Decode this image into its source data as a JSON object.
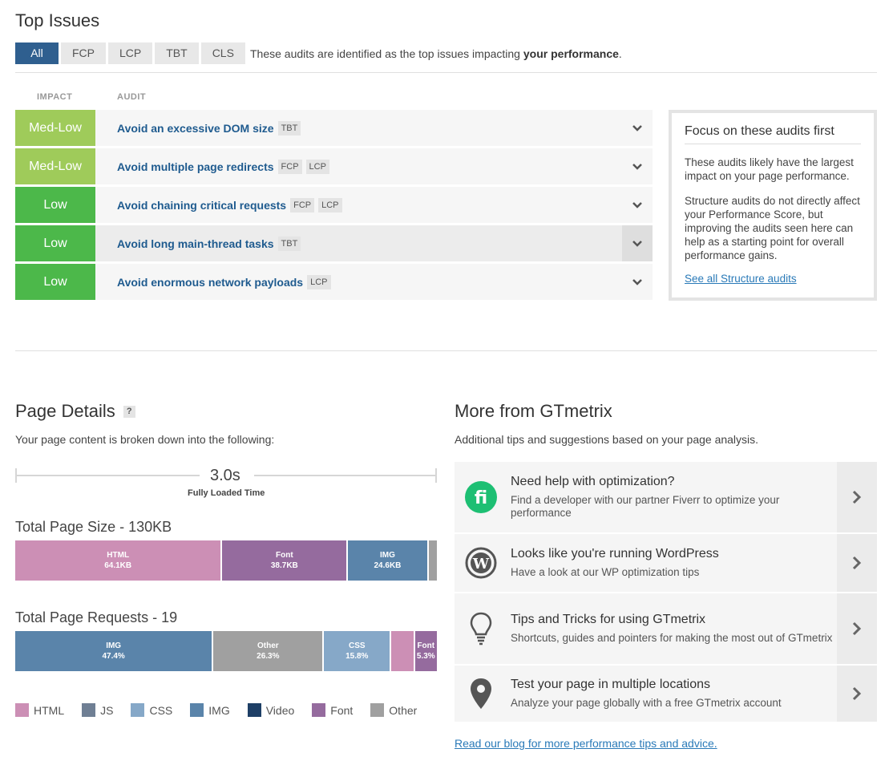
{
  "top_issues": {
    "title": "Top Issues",
    "tabs": [
      "All",
      "FCP",
      "LCP",
      "TBT",
      "CLS"
    ],
    "desc_prefix": "These audits are identified as the top issues impacting ",
    "desc_bold": "your performance",
    "desc_suffix": ".",
    "col_impact": "IMPACT",
    "col_audit": "AUDIT",
    "audits": [
      {
        "impact": "Med-Low",
        "title": "Avoid an excessive DOM size",
        "tags": [
          "TBT"
        ],
        "color": "#9fcb5a"
      },
      {
        "impact": "Med-Low",
        "title": "Avoid multiple page redirects",
        "tags": [
          "FCP",
          "LCP"
        ],
        "color": "#9fcb5a"
      },
      {
        "impact": "Low",
        "title": "Avoid chaining critical requests",
        "tags": [
          "FCP",
          "LCP"
        ],
        "color": "#4cb84a"
      },
      {
        "impact": "Low",
        "title": "Avoid long main-thread tasks",
        "tags": [
          "TBT"
        ],
        "color": "#4cb84a"
      },
      {
        "impact": "Low",
        "title": "Avoid enormous network payloads",
        "tags": [
          "LCP"
        ],
        "color": "#4cb84a"
      }
    ],
    "focus": {
      "title": "Focus on these audits first",
      "p1": "These audits likely have the largest impact on your page performance.",
      "p2": "Structure audits do not directly affect your Performance Score, but improving the audits seen here can help as a starting point for overall performance gains.",
      "link": "See all Structure audits"
    }
  },
  "page_details": {
    "title": "Page Details",
    "help": "?",
    "subtitle": "Your page content is broken down into the following:",
    "time_value": "3.0s",
    "time_label": "Fully Loaded Time",
    "size_title": "Total Page Size - 130KB",
    "size_segments": [
      {
        "label": "HTML",
        "value": "64.1KB",
        "share": 49.3,
        "color": "#cc8fb5"
      },
      {
        "label": "Font",
        "value": "38.7KB",
        "share": 29.8,
        "color": "#956b9e"
      },
      {
        "label": "IMG",
        "value": "24.6KB",
        "share": 18.9,
        "color": "#5a84aa"
      },
      {
        "label": "",
        "value": "",
        "share": 2.0,
        "color": "#a0a0a0"
      }
    ],
    "requests_title": "Total Page Requests - 19",
    "request_segments": [
      {
        "label": "IMG",
        "value": "47.4%",
        "share": 47.4,
        "color": "#5a84aa"
      },
      {
        "label": "Other",
        "value": "26.3%",
        "share": 26.3,
        "color": "#a0a0a0"
      },
      {
        "label": "CSS",
        "value": "15.8%",
        "share": 15.8,
        "color": "#86a8c8"
      },
      {
        "label": "",
        "value": "",
        "share": 5.3,
        "color": "#cc8fb5"
      },
      {
        "label": "Font",
        "value": "5.3%",
        "share": 5.3,
        "color": "#956b9e"
      }
    ],
    "legend": [
      {
        "label": "HTML",
        "color": "#cc8fb5"
      },
      {
        "label": "JS",
        "color": "#6f7f94"
      },
      {
        "label": "CSS",
        "color": "#86a8c8"
      },
      {
        "label": "IMG",
        "color": "#5a84aa"
      },
      {
        "label": "Video",
        "color": "#1e3f66"
      },
      {
        "label": "Font",
        "color": "#956b9e"
      },
      {
        "label": "Other",
        "color": "#a0a0a0"
      }
    ]
  },
  "more": {
    "title": "More from GTmetrix",
    "subtitle": "Additional tips and suggestions based on your page analysis.",
    "cards": [
      {
        "icon": "fiverr-icon",
        "title": "Need help with optimization?",
        "text": "Find a developer with our partner Fiverr to optimize your performance"
      },
      {
        "icon": "wordpress-icon",
        "title": "Looks like you're running WordPress",
        "text": "Have a look at our WP optimization tips"
      },
      {
        "icon": "lightbulb-icon",
        "title": "Tips and Tricks for using GTmetrix",
        "text": "Shortcuts, guides and pointers for making the most out of GTmetrix"
      },
      {
        "icon": "map-pin-icon",
        "title": "Test your page in multiple locations",
        "text": "Analyze your page globally with a free GTmetrix account"
      }
    ],
    "blog_link": "Read our blog for more performance tips and advice."
  }
}
